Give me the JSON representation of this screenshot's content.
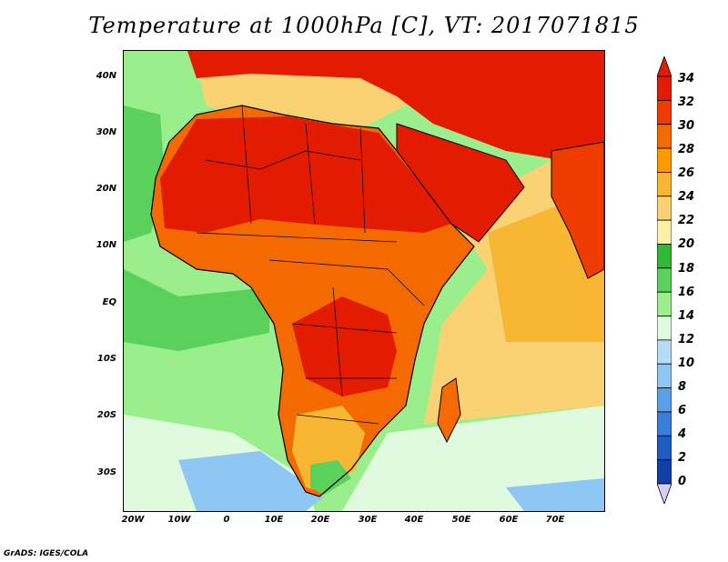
{
  "title": "Temperature at 1000hPa [C], VT: 2017071815",
  "credit": "GrADS: IGES/COLA",
  "map": {
    "lat_labels": [
      "40N",
      "30N",
      "20N",
      "10N",
      "EQ",
      "10S",
      "20S",
      "30S"
    ],
    "lon_labels": [
      "20W",
      "10W",
      "0",
      "10E",
      "20E",
      "30E",
      "40E",
      "50E",
      "60E",
      "70E"
    ],
    "lon_range": [
      -22,
      79
    ],
    "lat_range": [
      -37,
      45
    ]
  },
  "colorbar": {
    "labels": [
      "34",
      "32",
      "30",
      "28",
      "26",
      "24",
      "22",
      "20",
      "18",
      "16",
      "14",
      "12",
      "10",
      "8",
      "6",
      "4",
      "2",
      "0"
    ],
    "colors": [
      "#e31b00",
      "#ee3c00",
      "#f46a00",
      "#f89a00",
      "#f7b733",
      "#fad273",
      "#fff0a8",
      "#32b832",
      "#5ad15a",
      "#9bee8c",
      "#dffadf",
      "#b5dcf7",
      "#8ec6f4",
      "#5a9fe8",
      "#3a7ed9",
      "#1f5cc0",
      "#123fa5",
      "#0a1d7a",
      "#d8cdf7"
    ]
  },
  "legend_colors": {
    "hot": "#e31b00",
    "warm": "#f46a00",
    "mild": "#fad273",
    "cool_green": "#5ad15a",
    "cold_blue": "#8ec6f4"
  }
}
